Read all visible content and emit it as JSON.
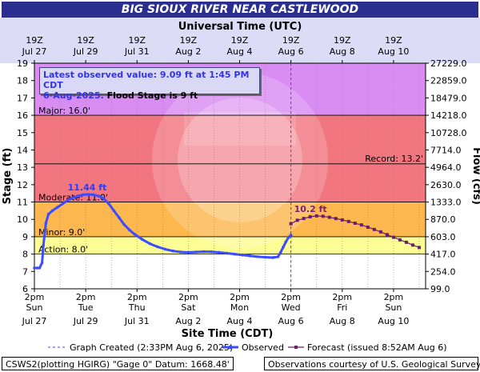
{
  "title": "BIG SIOUX RIVER NEAR CASTLEWOOD",
  "info": {
    "observed_line": "Latest observed value: 9.09 ft at 1:45 PM CDT",
    "date_text": "6-Aug-2025.",
    "flood_text": "Flood Stage is 9 ft"
  },
  "footer": {
    "left": "CSWS2(plotting HGIRG) \"Gage 0\" Datum: 1668.48'",
    "right": "Observations courtesy of U.S. Geological Survey"
  },
  "legend": {
    "created": "Graph Created (2:33PM Aug 6, 2025)",
    "observed": "Observed",
    "forecast": "Forecast (issued 8:52AM Aug 6)"
  },
  "chart_data": {
    "type": "line",
    "top_axis_title": "Universal Time (UTC)",
    "bottom_axis_title": "Site Time (CDT)",
    "ylabel": "Stage (ft)",
    "y2label": "Flow (cfs)",
    "ylim": [
      6,
      19
    ],
    "xlim_days": [
      0,
      15.25
    ],
    "top_ticks": [
      [
        "19Z",
        "Jul 27"
      ],
      [
        "19Z",
        "Jul 29"
      ],
      [
        "19Z",
        "Jul 31"
      ],
      [
        "19Z",
        "Aug  2"
      ],
      [
        "19Z",
        "Aug  4"
      ],
      [
        "19Z",
        "Aug  6"
      ],
      [
        "19Z",
        "Aug  8"
      ],
      [
        "19Z",
        "Aug 10"
      ]
    ],
    "bottom_ticks": [
      [
        "2pm",
        "Sun",
        "Jul 27"
      ],
      [
        "2pm",
        "Tue",
        "Jul 29"
      ],
      [
        "2pm",
        "Thu",
        "Jul 31"
      ],
      [
        "2pm",
        "Sat",
        "Aug 2"
      ],
      [
        "2pm",
        "Mon",
        "Aug 4"
      ],
      [
        "2pm",
        "Wed",
        "Aug 6"
      ],
      [
        "2pm",
        "Fri",
        "Aug 8"
      ],
      [
        "2pm",
        "Sun",
        "Aug 10"
      ]
    ],
    "y_ticks": [
      6,
      7,
      8,
      9,
      10,
      11,
      12,
      13,
      14,
      15,
      16,
      17,
      18,
      19
    ],
    "flow_ticks": [
      "99.0",
      "254.0",
      "417.0",
      "603.0",
      "870.0",
      "1333.0",
      "2630.0",
      "4964.0",
      "7714.0",
      "10728.0",
      "14218.0",
      "18479.0",
      "22859.0",
      "27229.0"
    ],
    "stages": [
      {
        "name": "Major",
        "label": "Major: 16.0'",
        "from": 16,
        "to": 19,
        "color": "#d98cf2"
      },
      {
        "name": "Moderate",
        "label": "Moderate: 11.0'",
        "from": 11,
        "to": 16,
        "color": "#f2767f"
      },
      {
        "name": "Minor",
        "label": "Minor: 9.0'",
        "from": 9,
        "to": 11,
        "color": "#fcb84f"
      },
      {
        "name": "Action",
        "label": "Action: 8.0'",
        "from": 8,
        "to": 9,
        "color": "#fdfd96"
      }
    ],
    "record": {
      "label": "Record: 13.2'",
      "value": 13.2
    },
    "now_day": 10,
    "peak_label": {
      "text": "11.44 ft",
      "x": 2.15,
      "y": 11.44
    },
    "forecast_peak_label": {
      "text": "10.2 ft",
      "x": 10.95,
      "y": 10.2
    },
    "observed": {
      "name": "Observed",
      "x": [
        0,
        0.1,
        0.2,
        0.3,
        0.35,
        0.45,
        0.55,
        0.7,
        0.9,
        1.1,
        1.3,
        1.5,
        1.7,
        1.9,
        2.1,
        2.3,
        2.5,
        2.7,
        2.9,
        3.1,
        3.3,
        3.5,
        3.7,
        3.9,
        4.2,
        4.5,
        4.8,
        5.1,
        5.4,
        5.7,
        6.0,
        6.3,
        6.6,
        6.9,
        7.2,
        7.5,
        7.8,
        8.1,
        8.4,
        8.7,
        9.0,
        9.3,
        9.5,
        9.6,
        9.7,
        9.8,
        9.9,
        10.0
      ],
      "y": [
        7.2,
        7.2,
        7.2,
        7.5,
        8.5,
        9.8,
        10.3,
        10.5,
        10.7,
        10.9,
        11.1,
        11.25,
        11.35,
        11.42,
        11.44,
        11.42,
        11.35,
        11.2,
        10.9,
        10.5,
        10.1,
        9.7,
        9.4,
        9.15,
        8.85,
        8.6,
        8.42,
        8.28,
        8.18,
        8.12,
        8.1,
        8.12,
        8.14,
        8.13,
        8.1,
        8.05,
        8.0,
        7.95,
        7.9,
        7.85,
        7.82,
        7.8,
        7.85,
        8.1,
        8.4,
        8.7,
        8.95,
        9.09
      ]
    },
    "forecast": {
      "name": "Forecast (issued 8:52AM Aug 6)",
      "x": [
        10.0,
        10.25,
        10.5,
        10.75,
        11.0,
        11.25,
        11.5,
        11.75,
        12.0,
        12.25,
        12.5,
        12.75,
        13.0,
        13.25,
        13.5,
        13.75,
        14.0,
        14.25,
        14.5,
        14.75,
        15.0
      ],
      "y": [
        9.75,
        9.95,
        10.05,
        10.15,
        10.2,
        10.18,
        10.12,
        10.05,
        9.97,
        9.88,
        9.78,
        9.68,
        9.55,
        9.42,
        9.28,
        9.12,
        8.97,
        8.82,
        8.68,
        8.52,
        8.38
      ]
    }
  }
}
